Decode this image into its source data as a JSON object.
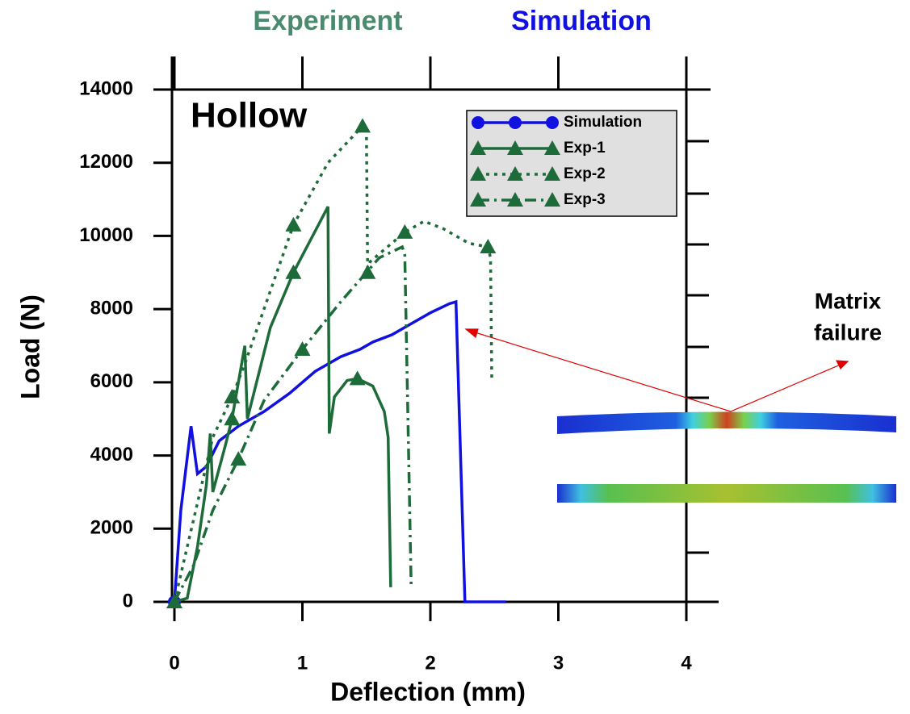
{
  "chart_data": {
    "type": "line",
    "title_left": "Experiment",
    "title_right": "Simulation",
    "inset_label": "Hollow",
    "annotation": [
      "Matrix",
      "failure"
    ],
    "xlabel": "Deflection (mm)",
    "ylabel": "Load (N)",
    "xlim": [
      0,
      4
    ],
    "ylim": [
      0,
      14000
    ],
    "xticks": [
      0,
      1,
      2,
      3,
      4
    ],
    "yticks": [
      0,
      2000,
      4000,
      6000,
      8000,
      10000,
      12000,
      14000
    ],
    "legend": "upper right",
    "series": [
      {
        "name": "Simulation",
        "color": "#1010e0",
        "style": "solid",
        "marker": "circle",
        "markers": [
          0
        ],
        "x": [
          0,
          0.05,
          0.13,
          0.18,
          0.25,
          0.35,
          0.5,
          0.7,
          0.9,
          1.1,
          1.3,
          1.45,
          1.55,
          1.7,
          1.85,
          2.0,
          2.15,
          2.2,
          2.27,
          2.59
        ],
        "values": [
          0,
          2500,
          4800,
          3500,
          3700,
          4400,
          4800,
          5200,
          5700,
          6300,
          6700,
          6900,
          7100,
          7300,
          7600,
          7900,
          8150,
          8200,
          0,
          0
        ]
      },
      {
        "name": "Exp-1",
        "color": "#1e6b3a",
        "style": "solid",
        "marker": "triangle",
        "markers": [
          0,
          7,
          11,
          16
        ],
        "x": [
          0,
          0.1,
          0.18,
          0.25,
          0.28,
          0.3,
          0.4,
          0.45,
          0.55,
          0.57,
          0.75,
          0.93,
          1.2,
          1.21,
          1.25,
          1.35,
          1.43,
          1.55,
          1.64,
          1.67,
          1.69
        ],
        "values": [
          0,
          100,
          1500,
          3200,
          4600,
          3000,
          4300,
          5000,
          7000,
          5000,
          7500,
          9000,
          10800,
          4600,
          5600,
          6050,
          6100,
          5900,
          5200,
          4500,
          400
        ]
      },
      {
        "name": "Exp-2",
        "color": "#1e6b3a",
        "style": "dotted",
        "marker": "triangle",
        "markers": [
          3,
          6,
          8,
          10,
          12,
          16
        ],
        "x": [
          0,
          0.1,
          0.3,
          0.45,
          0.55,
          0.7,
          0.93,
          1.2,
          1.47,
          1.5,
          1.51,
          1.53,
          1.8,
          1.95,
          2.1,
          2.3,
          2.45,
          2.47,
          2.48
        ],
        "values": [
          0,
          1500,
          4500,
          5600,
          6500,
          8000,
          10300,
          12000,
          13000,
          13000,
          9000,
          9300,
          10100,
          10400,
          10200,
          9800,
          9700,
          9400,
          6000
        ]
      },
      {
        "name": "Exp-3",
        "color": "#1e6b3a",
        "style": "dashdot",
        "marker": "triangle",
        "markers": [
          3,
          5
        ],
        "x": [
          0,
          0.15,
          0.3,
          0.5,
          0.7,
          1.0,
          1.3,
          1.6,
          1.78,
          1.8,
          1.85
        ],
        "values": [
          0,
          1000,
          2500,
          3900,
          5500,
          6900,
          8200,
          9400,
          9700,
          9500,
          400
        ]
      }
    ]
  }
}
